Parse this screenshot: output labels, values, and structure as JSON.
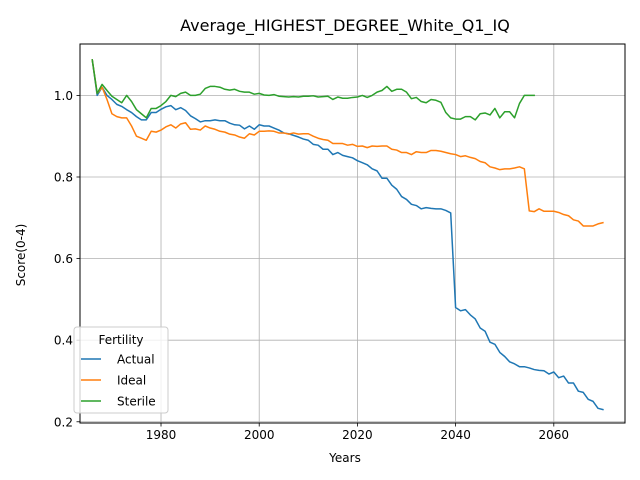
{
  "chart_data": {
    "type": "line",
    "title": "Average_HIGHEST_DEGREE_White_Q1_IQ",
    "xlabel": "Years",
    "ylabel": "Score(0-4)",
    "xlim": [
      1963.5,
      2074.5
    ],
    "ylim": [
      0.197,
      1.126
    ],
    "x_ticks": [
      1980,
      2000,
      2020,
      2040,
      2060
    ],
    "y_ticks": [
      0.2,
      0.4,
      0.6,
      0.8,
      1.0
    ],
    "x_tick_labels": [
      "1980",
      "2000",
      "2020",
      "2040",
      "2060"
    ],
    "y_tick_labels": [
      "0.2",
      "0.4",
      "0.6",
      "0.8",
      "1.0"
    ],
    "grid": true,
    "legend": {
      "title": "Fertility",
      "position": "lower-left"
    },
    "series": [
      {
        "name": "Actual",
        "color": "#1f77b4",
        "points": [
          [
            1966,
            1.087
          ],
          [
            1967,
            1.0
          ],
          [
            1968,
            1.02
          ],
          [
            1969,
            1.0
          ],
          [
            1970,
            0.99
          ],
          [
            1971,
            0.978
          ],
          [
            1972,
            0.973
          ],
          [
            1973,
            0.965
          ],
          [
            1974,
            0.958
          ],
          [
            1975,
            0.948
          ],
          [
            1976,
            0.94
          ],
          [
            1977,
            0.94
          ],
          [
            1978,
            0.958
          ],
          [
            1979,
            0.958
          ],
          [
            1980,
            0.966
          ],
          [
            1981,
            0.972
          ],
          [
            1982,
            0.975
          ],
          [
            1983,
            0.965
          ],
          [
            1984,
            0.97
          ],
          [
            1985,
            0.963
          ],
          [
            1986,
            0.95
          ],
          [
            1987,
            0.943
          ],
          [
            1988,
            0.935
          ],
          [
            1989,
            0.938
          ],
          [
            1990,
            0.938
          ],
          [
            1991,
            0.94
          ],
          [
            1992,
            0.938
          ],
          [
            1993,
            0.938
          ],
          [
            1994,
            0.932
          ],
          [
            1995,
            0.928
          ],
          [
            1996,
            0.927
          ],
          [
            1997,
            0.918
          ],
          [
            1998,
            0.925
          ],
          [
            1999,
            0.917
          ],
          [
            2000,
            0.928
          ],
          [
            2001,
            0.925
          ],
          [
            2002,
            0.925
          ],
          [
            2003,
            0.92
          ],
          [
            2004,
            0.915
          ],
          [
            2005,
            0.908
          ],
          [
            2006,
            0.906
          ],
          [
            2007,
            0.902
          ],
          [
            2008,
            0.898
          ],
          [
            2009,
            0.893
          ],
          [
            2010,
            0.89
          ],
          [
            2011,
            0.88
          ],
          [
            2012,
            0.878
          ],
          [
            2013,
            0.868
          ],
          [
            2014,
            0.868
          ],
          [
            2015,
            0.855
          ],
          [
            2016,
            0.86
          ],
          [
            2017,
            0.853
          ],
          [
            2018,
            0.85
          ],
          [
            2019,
            0.847
          ],
          [
            2020,
            0.84
          ],
          [
            2021,
            0.835
          ],
          [
            2022,
            0.83
          ],
          [
            2023,
            0.82
          ],
          [
            2024,
            0.815
          ],
          [
            2025,
            0.797
          ],
          [
            2026,
            0.797
          ],
          [
            2027,
            0.78
          ],
          [
            2028,
            0.77
          ],
          [
            2029,
            0.752
          ],
          [
            2030,
            0.745
          ],
          [
            2031,
            0.733
          ],
          [
            2032,
            0.73
          ],
          [
            2033,
            0.722
          ],
          [
            2034,
            0.725
          ],
          [
            2035,
            0.723
          ],
          [
            2036,
            0.722
          ],
          [
            2037,
            0.722
          ],
          [
            2038,
            0.718
          ],
          [
            2039,
            0.712
          ],
          [
            2040,
            0.48
          ],
          [
            2041,
            0.472
          ],
          [
            2042,
            0.475
          ],
          [
            2043,
            0.462
          ],
          [
            2044,
            0.452
          ],
          [
            2045,
            0.43
          ],
          [
            2046,
            0.422
          ],
          [
            2047,
            0.395
          ],
          [
            2048,
            0.39
          ],
          [
            2049,
            0.37
          ],
          [
            2050,
            0.36
          ],
          [
            2051,
            0.347
          ],
          [
            2052,
            0.342
          ],
          [
            2053,
            0.335
          ],
          [
            2054,
            0.335
          ],
          [
            2055,
            0.332
          ],
          [
            2056,
            0.328
          ],
          [
            2057,
            0.326
          ],
          [
            2058,
            0.325
          ],
          [
            2059,
            0.317
          ],
          [
            2060,
            0.322
          ],
          [
            2061,
            0.308
          ],
          [
            2062,
            0.312
          ],
          [
            2063,
            0.295
          ],
          [
            2064,
            0.295
          ],
          [
            2065,
            0.275
          ],
          [
            2066,
            0.272
          ],
          [
            2067,
            0.255
          ],
          [
            2068,
            0.25
          ],
          [
            2069,
            0.233
          ],
          [
            2070,
            0.23
          ]
        ]
      },
      {
        "name": "Ideal",
        "color": "#ff7f0e",
        "points": [
          [
            1966,
            1.087
          ],
          [
            1967,
            1.005
          ],
          [
            1968,
            1.02
          ],
          [
            1969,
            0.99
          ],
          [
            1970,
            0.955
          ],
          [
            1971,
            0.948
          ],
          [
            1972,
            0.945
          ],
          [
            1973,
            0.945
          ],
          [
            1974,
            0.925
          ],
          [
            1975,
            0.9
          ],
          [
            1976,
            0.895
          ],
          [
            1977,
            0.89
          ],
          [
            1978,
            0.912
          ],
          [
            1979,
            0.91
          ],
          [
            1980,
            0.915
          ],
          [
            1981,
            0.923
          ],
          [
            1982,
            0.928
          ],
          [
            1983,
            0.92
          ],
          [
            1984,
            0.93
          ],
          [
            1985,
            0.933
          ],
          [
            1986,
            0.917
          ],
          [
            1987,
            0.918
          ],
          [
            1988,
            0.915
          ],
          [
            1989,
            0.925
          ],
          [
            1990,
            0.92
          ],
          [
            1991,
            0.917
          ],
          [
            1992,
            0.912
          ],
          [
            1993,
            0.91
          ],
          [
            1994,
            0.905
          ],
          [
            1995,
            0.903
          ],
          [
            1996,
            0.898
          ],
          [
            1997,
            0.895
          ],
          [
            1998,
            0.906
          ],
          [
            1999,
            0.903
          ],
          [
            2000,
            0.912
          ],
          [
            2001,
            0.912
          ],
          [
            2002,
            0.913
          ],
          [
            2003,
            0.912
          ],
          [
            2004,
            0.908
          ],
          [
            2005,
            0.908
          ],
          [
            2006,
            0.905
          ],
          [
            2007,
            0.908
          ],
          [
            2008,
            0.905
          ],
          [
            2009,
            0.906
          ],
          [
            2010,
            0.906
          ],
          [
            2011,
            0.9
          ],
          [
            2012,
            0.895
          ],
          [
            2013,
            0.892
          ],
          [
            2014,
            0.89
          ],
          [
            2015,
            0.882
          ],
          [
            2016,
            0.882
          ],
          [
            2017,
            0.882
          ],
          [
            2018,
            0.878
          ],
          [
            2019,
            0.88
          ],
          [
            2020,
            0.875
          ],
          [
            2021,
            0.876
          ],
          [
            2022,
            0.872
          ],
          [
            2023,
            0.876
          ],
          [
            2024,
            0.875
          ],
          [
            2025,
            0.876
          ],
          [
            2026,
            0.876
          ],
          [
            2027,
            0.868
          ],
          [
            2028,
            0.866
          ],
          [
            2029,
            0.86
          ],
          [
            2030,
            0.86
          ],
          [
            2031,
            0.855
          ],
          [
            2032,
            0.862
          ],
          [
            2033,
            0.86
          ],
          [
            2034,
            0.86
          ],
          [
            2035,
            0.865
          ],
          [
            2036,
            0.865
          ],
          [
            2037,
            0.863
          ],
          [
            2038,
            0.86
          ],
          [
            2039,
            0.857
          ],
          [
            2040,
            0.855
          ],
          [
            2041,
            0.85
          ],
          [
            2042,
            0.852
          ],
          [
            2043,
            0.848
          ],
          [
            2044,
            0.845
          ],
          [
            2045,
            0.838
          ],
          [
            2046,
            0.835
          ],
          [
            2047,
            0.825
          ],
          [
            2048,
            0.822
          ],
          [
            2049,
            0.818
          ],
          [
            2050,
            0.82
          ],
          [
            2051,
            0.82
          ],
          [
            2052,
            0.822
          ],
          [
            2053,
            0.825
          ],
          [
            2054,
            0.82
          ],
          [
            2055,
            0.717
          ],
          [
            2056,
            0.715
          ],
          [
            2057,
            0.722
          ],
          [
            2058,
            0.716
          ],
          [
            2059,
            0.716
          ],
          [
            2060,
            0.716
          ],
          [
            2061,
            0.713
          ],
          [
            2062,
            0.708
          ],
          [
            2063,
            0.705
          ],
          [
            2064,
            0.695
          ],
          [
            2065,
            0.692
          ],
          [
            2066,
            0.68
          ],
          [
            2067,
            0.68
          ],
          [
            2068,
            0.68
          ],
          [
            2069,
            0.685
          ],
          [
            2070,
            0.688
          ]
        ]
      },
      {
        "name": "Sterile",
        "color": "#2ca02c",
        "points": [
          [
            1966,
            1.087
          ],
          [
            1967,
            1.005
          ],
          [
            1968,
            1.027
          ],
          [
            1969,
            1.012
          ],
          [
            1970,
            0.998
          ],
          [
            1971,
            0.99
          ],
          [
            1972,
            0.982
          ],
          [
            1973,
            1.0
          ],
          [
            1974,
            0.985
          ],
          [
            1975,
            0.965
          ],
          [
            1976,
            0.955
          ],
          [
            1977,
            0.945
          ],
          [
            1978,
            0.968
          ],
          [
            1979,
            0.968
          ],
          [
            1980,
            0.975
          ],
          [
            1981,
            0.985
          ],
          [
            1982,
            1.0
          ],
          [
            1983,
            0.997
          ],
          [
            1984,
            1.005
          ],
          [
            1985,
            1.008
          ],
          [
            1986,
            1.0
          ],
          [
            1987,
            1.0
          ],
          [
            1988,
            1.003
          ],
          [
            1989,
            1.017
          ],
          [
            1990,
            1.022
          ],
          [
            1991,
            1.022
          ],
          [
            1992,
            1.02
          ],
          [
            1993,
            1.015
          ],
          [
            1994,
            1.013
          ],
          [
            1995,
            1.015
          ],
          [
            1996,
            1.01
          ],
          [
            1997,
            1.008
          ],
          [
            1998,
            1.008
          ],
          [
            1999,
            1.003
          ],
          [
            2000,
            1.005
          ],
          [
            2001,
            1.001
          ],
          [
            2002,
            1.0
          ],
          [
            2003,
            1.002
          ],
          [
            2004,
            0.998
          ],
          [
            2005,
            0.997
          ],
          [
            2006,
            0.996
          ],
          [
            2007,
            0.997
          ],
          [
            2008,
            0.996
          ],
          [
            2009,
            0.998
          ],
          [
            2010,
            0.998
          ],
          [
            2011,
            0.999
          ],
          [
            2012,
            0.996
          ],
          [
            2013,
            0.997
          ],
          [
            2014,
            0.998
          ],
          [
            2015,
            0.99
          ],
          [
            2016,
            0.996
          ],
          [
            2017,
            0.993
          ],
          [
            2018,
            0.993
          ],
          [
            2019,
            0.995
          ],
          [
            2020,
            0.996
          ],
          [
            2021,
            1.0
          ],
          [
            2022,
            0.995
          ],
          [
            2023,
            1.0
          ],
          [
            2024,
            1.008
          ],
          [
            2025,
            1.012
          ],
          [
            2026,
            1.022
          ],
          [
            2027,
            1.01
          ],
          [
            2028,
            1.015
          ],
          [
            2029,
            1.015
          ],
          [
            2030,
            1.008
          ],
          [
            2031,
            0.992
          ],
          [
            2032,
            0.995
          ],
          [
            2033,
            0.985
          ],
          [
            2034,
            0.982
          ],
          [
            2035,
            0.99
          ],
          [
            2036,
            0.988
          ],
          [
            2037,
            0.983
          ],
          [
            2038,
            0.958
          ],
          [
            2039,
            0.945
          ],
          [
            2040,
            0.942
          ],
          [
            2041,
            0.942
          ],
          [
            2042,
            0.948
          ],
          [
            2043,
            0.948
          ],
          [
            2044,
            0.94
          ],
          [
            2045,
            0.955
          ],
          [
            2046,
            0.957
          ],
          [
            2047,
            0.952
          ],
          [
            2048,
            0.968
          ],
          [
            2049,
            0.945
          ],
          [
            2050,
            0.96
          ],
          [
            2051,
            0.96
          ],
          [
            2052,
            0.945
          ],
          [
            2053,
            0.98
          ],
          [
            2054,
            1.0
          ],
          [
            2055,
            1.0
          ],
          [
            2056,
            1.0
          ]
        ]
      }
    ]
  }
}
